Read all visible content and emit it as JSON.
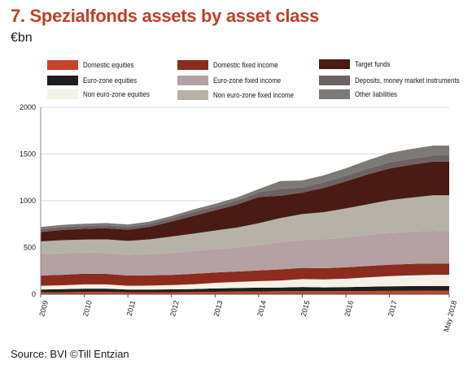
{
  "title": "7. Spezialfonds assets by asset class",
  "unit": "€bn",
  "source": "Source: BVI ©Till Entzian",
  "chart_data": {
    "type": "area",
    "stacked": true,
    "x_tick_labels": [
      "2009",
      "2010",
      "2011",
      "2012",
      "2013",
      "2014",
      "2015",
      "2016",
      "2017",
      "May 2018"
    ],
    "x_tick_positions": [
      2009.0,
      2010.0,
      2011.0,
      2012.0,
      2013.0,
      2014.0,
      2015.0,
      2016.0,
      2017.0,
      2018.37
    ],
    "y_tick_labels": [
      "0",
      "500",
      "1000",
      "1500",
      "2000"
    ],
    "ylim": [
      0,
      2000
    ],
    "grid": "horizontal",
    "legend_position": "top",
    "x": [
      2009.0,
      2009.5,
      2010.0,
      2010.5,
      2011.0,
      2011.5,
      2012.0,
      2012.5,
      2013.0,
      2013.5,
      2014.0,
      2014.5,
      2015.0,
      2015.5,
      2016.0,
      2016.5,
      2017.0,
      2017.5,
      2018.0,
      2018.37
    ],
    "series": [
      {
        "name": "Domestic equities",
        "color": "#c8432b",
        "values": [
          20,
          22,
          25,
          25,
          22,
          22,
          22,
          24,
          26,
          28,
          30,
          32,
          33,
          33,
          34,
          35,
          36,
          37,
          38,
          38
        ]
      },
      {
        "name": "Euro-zone equities",
        "color": "#1e1e1e",
        "values": [
          30,
          32,
          35,
          35,
          28,
          28,
          30,
          32,
          36,
          38,
          40,
          40,
          44,
          40,
          42,
          45,
          48,
          50,
          50,
          50
        ]
      },
      {
        "name": "Non euro-zone equities",
        "color": "#f4f1e6",
        "values": [
          40,
          42,
          45,
          45,
          40,
          42,
          45,
          50,
          60,
          65,
          70,
          75,
          85,
          85,
          90,
          100,
          110,
          115,
          120,
          120
        ]
      },
      {
        "name": "Domestic fixed income",
        "color": "#8b2c1e",
        "values": [
          110,
          112,
          115,
          112,
          110,
          110,
          110,
          112,
          110,
          112,
          115,
          118,
          120,
          120,
          122,
          122,
          122,
          122,
          120,
          120
        ]
      },
      {
        "name": "Euro-zone fixed income",
        "color": "#b5a0a4",
        "values": [
          230,
          230,
          225,
          225,
          220,
          225,
          235,
          245,
          250,
          255,
          270,
          290,
          300,
          310,
          320,
          330,
          340,
          345,
          350,
          345
        ]
      },
      {
        "name": "Non euro-zone fixed income",
        "color": "#b6b2a8",
        "values": [
          135,
          140,
          140,
          145,
          150,
          160,
          175,
          185,
          200,
          215,
          235,
          260,
          275,
          290,
          310,
          330,
          350,
          365,
          380,
          385
        ]
      },
      {
        "name": "Target funds",
        "color": "#4a1a14",
        "values": [
          100,
          110,
          115,
          120,
          120,
          135,
          160,
          190,
          215,
          245,
          280,
          240,
          230,
          260,
          290,
          320,
          340,
          350,
          360,
          360
        ]
      },
      {
        "name": "Deposits, money market instruments",
        "color": "#6c6264",
        "values": [
          30,
          30,
          30,
          30,
          30,
          30,
          35,
          40,
          40,
          45,
          50,
          75,
          55,
          60,
          60,
          60,
          65,
          65,
          65,
          65
        ]
      },
      {
        "name": "Other liabilities",
        "color": "#7c7a76",
        "values": [
          25,
          25,
          25,
          25,
          25,
          25,
          25,
          28,
          30,
          32,
          35,
          80,
          75,
          75,
          80,
          90,
          100,
          105,
          107,
          107
        ]
      }
    ]
  },
  "legend": [
    {
      "label": "Domestic equities",
      "color": "#c8432b"
    },
    {
      "label": "Euro-zone equities",
      "color": "#1e1e1e"
    },
    {
      "label": "Non euro-zone equities",
      "color": "#f4f1e6"
    },
    {
      "label": "Domestic fixed income",
      "color": "#8b2c1e"
    },
    {
      "label": "Euro-zone fixed income",
      "color": "#b5a0a4"
    },
    {
      "label": "Non euro-zone fixed income",
      "color": "#b6b2a8"
    },
    {
      "label": "Target funds",
      "color": "#4a1a14"
    },
    {
      "label": "Deposits, money market instruments",
      "color": "#6c6264"
    },
    {
      "label": "Other liabilities",
      "color": "#7c7a76"
    }
  ]
}
